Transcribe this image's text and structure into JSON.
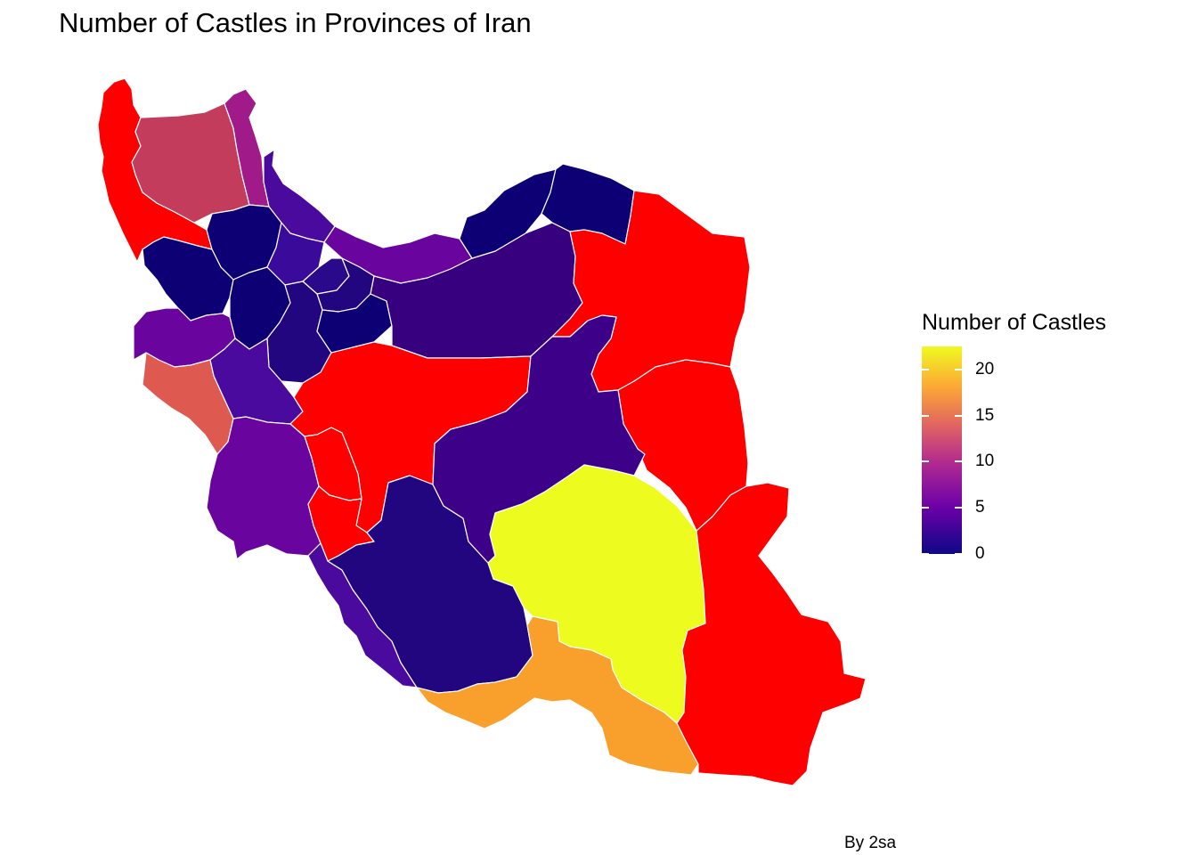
{
  "title": "Number of Castles in Provinces of Iran",
  "credit": "By 2sa",
  "legend": {
    "title": "Number of Castles",
    "min": 0,
    "max": 22.5,
    "ticks": [
      "0",
      "5",
      "10",
      "15",
      "20"
    ],
    "tick_values": [
      0,
      5,
      10,
      15,
      20
    ],
    "palette": [
      "#0d0887",
      "#6a00a8",
      "#b12a90",
      "#e16462",
      "#fca636",
      "#f0f921"
    ]
  },
  "map": {
    "country": "Iran",
    "border_color": "#ffffff",
    "regions": [
      {
        "name": "west-azerbaijan",
        "value": 20,
        "color": "#ff0000"
      },
      {
        "name": "east-azerbaijan",
        "value": 12,
        "color": "#c43c5c"
      },
      {
        "name": "ardabil",
        "value": 9,
        "color": "#a01a8a"
      },
      {
        "name": "zanjan",
        "value": 1,
        "color": "#0d0075"
      },
      {
        "name": "gilan",
        "value": 5,
        "color": "#4a0a9e"
      },
      {
        "name": "qazvin",
        "value": 4,
        "color": "#3a0a9a"
      },
      {
        "name": "mazandaran",
        "value": 6,
        "color": "#6a049e"
      },
      {
        "name": "tehran",
        "value": 2,
        "color": "#22067f"
      },
      {
        "name": "alborz",
        "value": 3,
        "color": "#2a0a8a"
      },
      {
        "name": "semnan",
        "value": 4,
        "color": "#37007f"
      },
      {
        "name": "golestan",
        "value": 1,
        "color": "#0d0075"
      },
      {
        "name": "north-khorasan",
        "value": 1,
        "color": "#0d0075"
      },
      {
        "name": "razavi-khorasan",
        "value": 20,
        "color": "#ff0000"
      },
      {
        "name": "south-khorasan",
        "value": 20,
        "color": "#ff0000"
      },
      {
        "name": "kurdistan",
        "value": 1,
        "color": "#0d0075"
      },
      {
        "name": "hamadan",
        "value": 1,
        "color": "#0d0075"
      },
      {
        "name": "markazi",
        "value": 2,
        "color": "#22067f"
      },
      {
        "name": "qom",
        "value": 1,
        "color": "#0d0075"
      },
      {
        "name": "isfahan",
        "value": 20,
        "color": "#ff0000"
      },
      {
        "name": "kermanshah",
        "value": 6,
        "color": "#6a049e"
      },
      {
        "name": "ilam",
        "value": 13,
        "color": "#de5a50"
      },
      {
        "name": "lorestan",
        "value": 5,
        "color": "#4a0a9e"
      },
      {
        "name": "khuzestan",
        "value": 6,
        "color": "#6a049e"
      },
      {
        "name": "chaharmahal",
        "value": 20,
        "color": "#ff0000"
      },
      {
        "name": "kohgiluyeh",
        "value": 20,
        "color": "#ff0000"
      },
      {
        "name": "bushehr",
        "value": 5,
        "color": "#4a0a9e"
      },
      {
        "name": "fars",
        "value": 2,
        "color": "#22067f"
      },
      {
        "name": "yazd",
        "value": 5,
        "color": "#3d0089"
      },
      {
        "name": "kerman",
        "value": 22,
        "color": "#eefb1e"
      },
      {
        "name": "hormozgan",
        "value": 17,
        "color": "#f9a02c"
      },
      {
        "name": "sistan-baluchestan",
        "value": 20,
        "color": "#ff0000"
      }
    ]
  }
}
